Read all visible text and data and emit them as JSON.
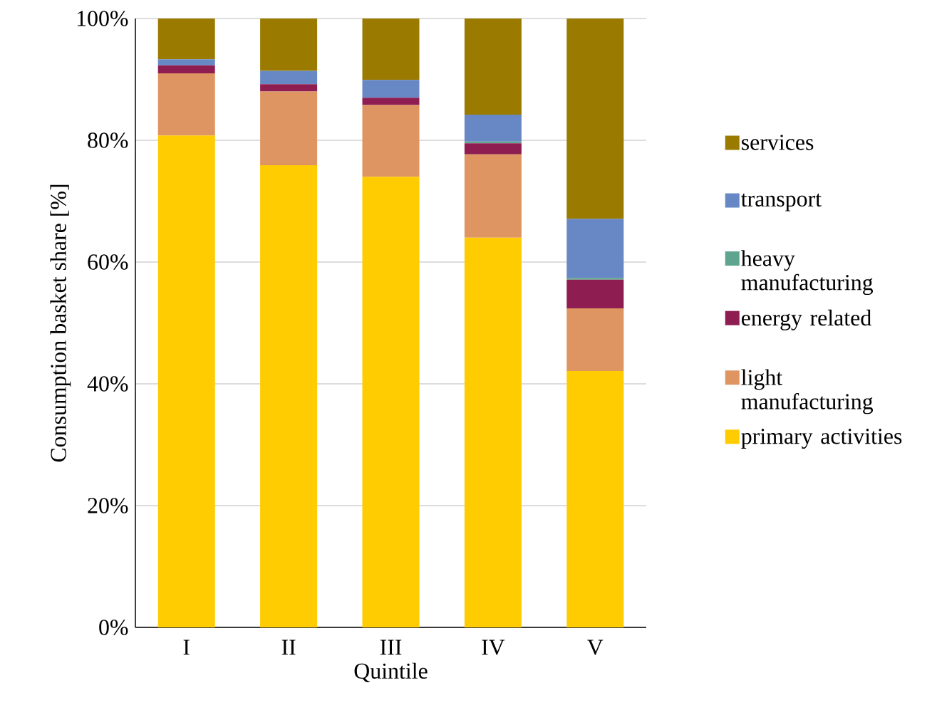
{
  "chart_data": {
    "type": "bar",
    "stacked": true,
    "xlabel": "Quintile",
    "ylabel": "Consumption basket share [%]",
    "categories": [
      "I",
      "II",
      "III",
      "IV",
      "V"
    ],
    "series": [
      {
        "name": "primary activities",
        "color": "#fecc00",
        "values": [
          80.8,
          75.9,
          74.0,
          64.0,
          42.1
        ]
      },
      {
        "name": "light manufacturing",
        "color": "#de9562",
        "values": [
          10.2,
          12.1,
          11.8,
          13.7,
          10.3
        ]
      },
      {
        "name": "energy related",
        "color": "#8e1e52",
        "values": [
          1.3,
          1.2,
          1.2,
          1.8,
          4.7
        ]
      },
      {
        "name": "heavy manufacturing",
        "color": "#5fa48e",
        "values": [
          0,
          0,
          0,
          0.3,
          0.3
        ]
      },
      {
        "name": "transport",
        "color": "#6788c4",
        "values": [
          1.0,
          2.2,
          2.9,
          4.4,
          9.7
        ]
      },
      {
        "name": "services",
        "color": "#9a7b00",
        "values": [
          6.7,
          8.6,
          10.1,
          15.8,
          32.9
        ]
      }
    ],
    "ylim": [
      0,
      100
    ],
    "yticks": [
      {
        "value": 0,
        "label": "0%"
      },
      {
        "value": 20,
        "label": "20%"
      },
      {
        "value": 40,
        "label": "40%"
      },
      {
        "value": 60,
        "label": "60%"
      },
      {
        "value": 80,
        "label": "80%"
      },
      {
        "value": 100,
        "label": "100%"
      }
    ],
    "grid": "y",
    "legend": "right"
  }
}
